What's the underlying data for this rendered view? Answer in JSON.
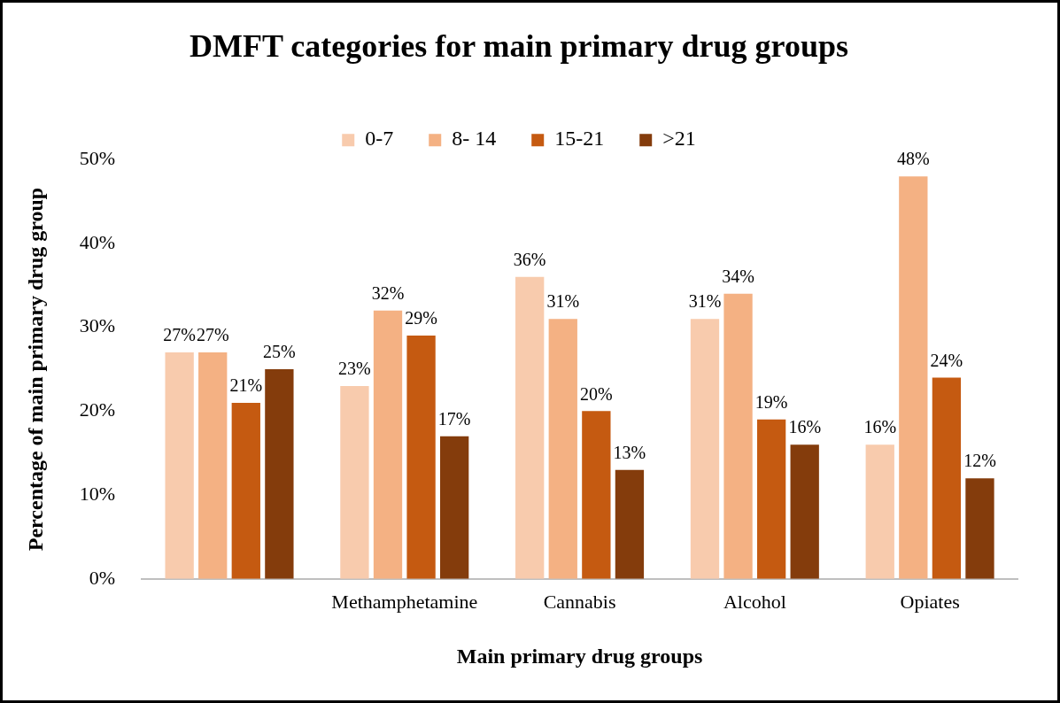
{
  "chart_data": {
    "type": "bar",
    "title": "DMFT categories for main primary drug groups",
    "xlabel": "Main primary drug groups",
    "ylabel": "Percentage of main primary drug group",
    "categories": [
      null,
      "Methamphetamine",
      "Cannabis",
      "Alcohol",
      "Opiates"
    ],
    "series": [
      {
        "name": "0-7",
        "color": "#f8cbad",
        "values": [
          27,
          23,
          36,
          31,
          16
        ],
        "value_labels": [
          "27%",
          "23%",
          "36%",
          "31%",
          "16%"
        ]
      },
      {
        "name": "8- 14",
        "color": "#f4b183",
        "values": [
          27,
          32,
          31,
          34,
          48
        ],
        "value_labels": [
          "27%",
          "32%",
          "31%",
          "34%",
          "48%"
        ]
      },
      {
        "name": "15-21",
        "color": "#c55a11",
        "values": [
          21,
          29,
          20,
          19,
          24
        ],
        "value_labels": [
          "21%",
          "29%",
          "20%",
          "19%",
          "24%"
        ]
      },
      {
        "name": ">21",
        "color": "#843c0c",
        "values": [
          25,
          17,
          13,
          16,
          12
        ],
        "value_labels": [
          "25%",
          "17%",
          "13%",
          "16%",
          "12%"
        ]
      }
    ],
    "ylim": [
      0,
      50
    ],
    "yticks": [
      {
        "value": 0,
        "label": "0%"
      },
      {
        "value": 10,
        "label": "10%"
      },
      {
        "value": 20,
        "label": "20%"
      },
      {
        "value": 30,
        "label": "30%"
      },
      {
        "value": 40,
        "label": "40%"
      },
      {
        "value": 50,
        "label": "50%"
      }
    ],
    "legend": "top"
  }
}
